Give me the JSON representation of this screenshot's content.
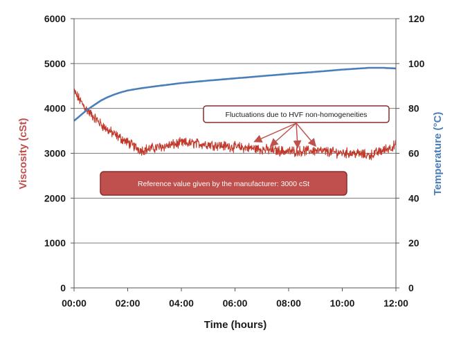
{
  "chart_data": {
    "type": "line",
    "title": "",
    "xlabel": "Time (hours)",
    "ylabel": "Viscosity (cSt)",
    "y2label": "Temperature (°C)",
    "x_tick_labels": [
      "00:00",
      "02:00",
      "04:00",
      "06:00",
      "08:00",
      "10:00",
      "12:00"
    ],
    "xlim": [
      0,
      12
    ],
    "x_unit": "hours",
    "ylim": [
      0,
      6000
    ],
    "y_ticks": [
      "0",
      "1000",
      "2000",
      "3000",
      "4000",
      "5000",
      "6000"
    ],
    "y2lim": [
      0,
      120
    ],
    "y2_ticks": [
      "0",
      "20",
      "40",
      "60",
      "80",
      "100",
      "120"
    ],
    "grid": "horizontal",
    "series": [
      {
        "axis": "left",
        "color": "#c0392b",
        "noisy": true,
        "x": [
          0,
          0.25,
          0.5,
          0.75,
          1.0,
          1.25,
          1.5,
          1.75,
          2.0,
          2.25,
          2.5,
          3.0,
          3.5,
          4.0,
          4.5,
          5.0,
          5.5,
          6.0,
          6.5,
          7.0,
          7.5,
          8.0,
          8.5,
          9.0,
          9.5,
          10.0,
          10.5,
          11.0,
          11.5,
          12.0
        ],
        "values": [
          4380,
          4150,
          3950,
          3800,
          3650,
          3520,
          3420,
          3330,
          3240,
          3150,
          3070,
          3120,
          3170,
          3230,
          3220,
          3200,
          3170,
          3140,
          3120,
          3090,
          3060,
          3040,
          3050,
          3060,
          3030,
          3010,
          3000,
          2950,
          3060,
          3180
        ]
      },
      {
        "axis": "right",
        "color": "#4a7ebb",
        "x": [
          0,
          0.25,
          0.5,
          0.75,
          1.0,
          1.25,
          1.5,
          1.75,
          2.0,
          2.5,
          3.0,
          4.0,
          5.0,
          6.0,
          7.0,
          8.0,
          9.0,
          10.0,
          11.0,
          11.5,
          12.0
        ],
        "values": [
          74.5,
          77,
          79.5,
          81.5,
          83.5,
          85,
          86.2,
          87.2,
          88,
          89,
          89.8,
          91.3,
          92.4,
          93.4,
          94.4,
          95.4,
          96.3,
          97.3,
          98.1,
          98.1,
          97.8
        ]
      }
    ],
    "annotations": [
      {
        "text": "Fluctuations  due  to HVF non-homogeneities"
      },
      {
        "text": "Reference value given by the manufacturer:  3000 cSt"
      }
    ]
  }
}
